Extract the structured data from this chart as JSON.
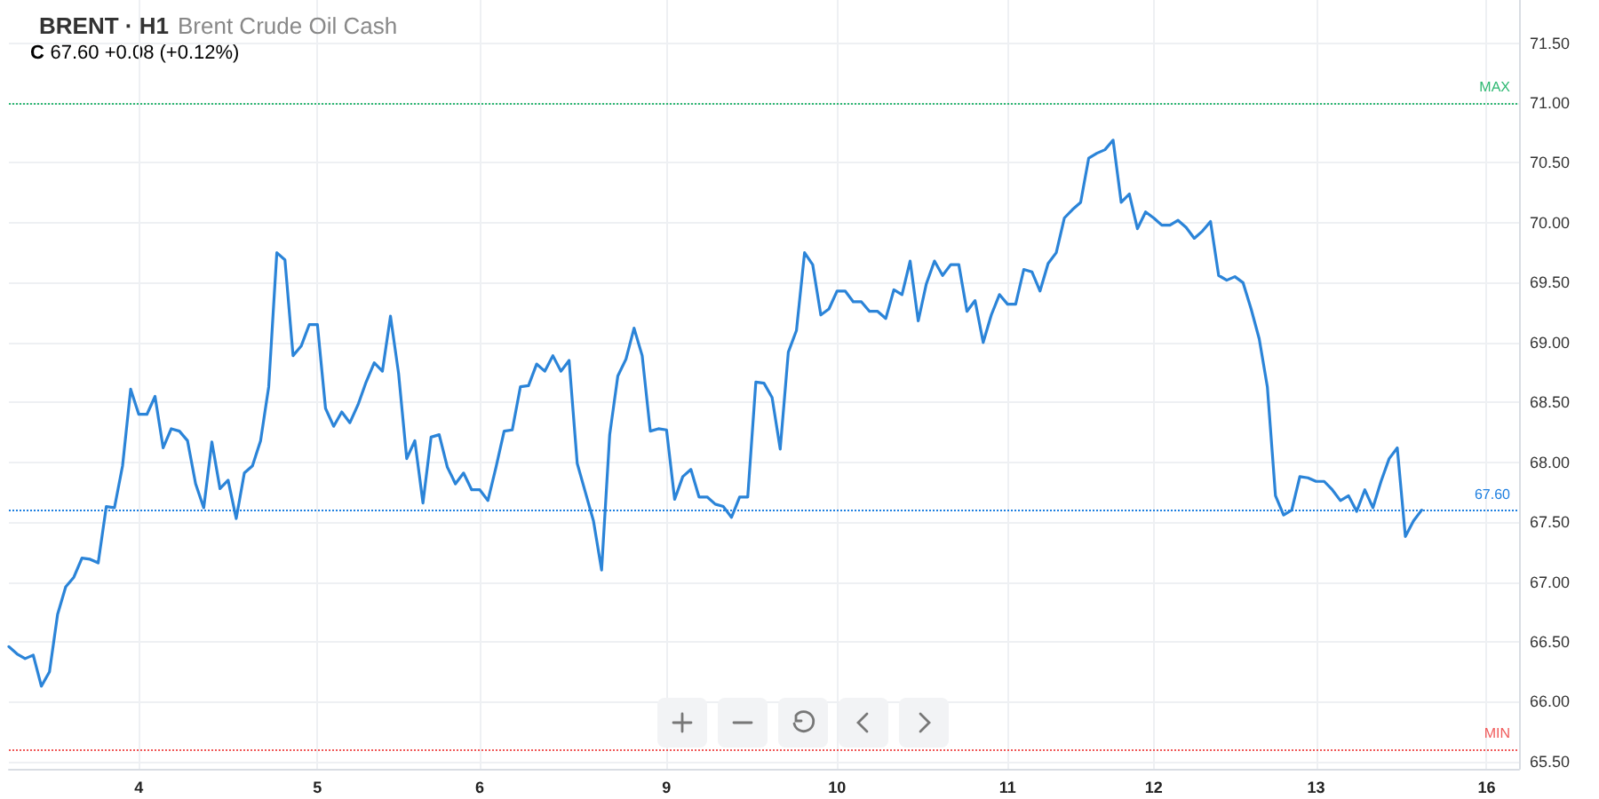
{
  "chart_data": {
    "type": "line",
    "title": "BRENT · H1",
    "subtitle": "Brent Crude Oil Cash",
    "annotations": [
      "C 67.60 +0.08 (+0.12%)"
    ],
    "categories": [
      null,
      null,
      null,
      null,
      null,
      null,
      null,
      null,
      null,
      null,
      null,
      null,
      null,
      null,
      null,
      null,
      "4",
      null,
      null,
      null,
      null,
      null,
      null,
      null,
      null,
      null,
      null,
      null,
      null,
      null,
      null,
      null,
      null,
      null,
      null,
      null,
      null,
      null,
      "5",
      null,
      null,
      null,
      null,
      null,
      null,
      null,
      null,
      null,
      null,
      null,
      null,
      null,
      null,
      null,
      null,
      null,
      null,
      null,
      "6",
      null,
      null,
      null,
      null,
      null,
      null,
      null,
      null,
      null,
      null,
      null,
      null,
      null,
      null,
      null,
      null,
      null,
      null,
      null,
      null,
      null,
      null,
      "9",
      null,
      null,
      null,
      null,
      null,
      null,
      null,
      null,
      null,
      null,
      null,
      null,
      null,
      null,
      null,
      null,
      null,
      null,
      null,
      null,
      "10",
      null,
      null,
      null,
      null,
      null,
      null,
      null,
      null,
      null,
      null,
      null,
      null,
      null,
      null,
      null,
      null,
      null,
      null,
      null,
      null,
      "11",
      null,
      null,
      null,
      null,
      null,
      null,
      null,
      null,
      null,
      null,
      null,
      null,
      null,
      null,
      null,
      null,
      null,
      "12",
      null,
      null,
      null,
      null,
      null,
      null,
      null,
      null,
      null,
      null,
      null,
      null,
      null,
      null,
      null,
      null,
      null,
      null,
      null,
      "13",
      null,
      null,
      null,
      null,
      null,
      null,
      null,
      null,
      null,
      null,
      null,
      null,
      null,
      null,
      null,
      null,
      null,
      null,
      null,
      null,
      "16",
      null,
      null,
      null,
      null
    ],
    "series": [
      {
        "color": "#2b84d8",
        "values": [
          66.46,
          66.4,
          66.36,
          66.39,
          66.13,
          66.25,
          66.73,
          66.96,
          67.04,
          67.2,
          67.19,
          67.16,
          67.63,
          67.62,
          67.97,
          68.61,
          68.4,
          68.4,
          68.55,
          68.12,
          68.28,
          68.26,
          68.18,
          67.82,
          67.62,
          68.17,
          67.78,
          67.85,
          67.53,
          67.91,
          67.97,
          68.18,
          68.63,
          69.75,
          69.69,
          68.89,
          68.97,
          69.15,
          69.15,
          68.45,
          68.3,
          68.42,
          68.33,
          68.48,
          68.67,
          68.83,
          68.76,
          69.22,
          68.74,
          68.03,
          68.18,
          67.66,
          68.21,
          68.23,
          67.96,
          67.82,
          67.91,
          67.77,
          67.77,
          67.68,
          67.96,
          68.26,
          68.27,
          68.63,
          68.64,
          68.82,
          68.76,
          68.89,
          68.76,
          68.85,
          67.99,
          67.75,
          67.51,
          67.1,
          68.23,
          68.72,
          68.86,
          69.12,
          68.89,
          68.26,
          68.28,
          68.27,
          67.69,
          67.88,
          67.94,
          67.71,
          67.71,
          67.65,
          67.63,
          67.54,
          67.71,
          67.71,
          68.67,
          68.66,
          68.54,
          68.11,
          68.92,
          69.1,
          69.75,
          69.65,
          69.23,
          69.28,
          69.43,
          69.43,
          69.34,
          69.34,
          69.26,
          69.26,
          69.2,
          69.44,
          69.4,
          69.68,
          69.18,
          69.49,
          69.68,
          69.56,
          69.65,
          69.65,
          69.26,
          69.35,
          69.0,
          69.23,
          69.4,
          69.32,
          69.32,
          69.61,
          69.59,
          69.43,
          69.66,
          69.75,
          70.04,
          70.11,
          70.17,
          70.54,
          70.58,
          70.61,
          70.69,
          70.17,
          70.24,
          69.95,
          70.09,
          70.04,
          69.98,
          69.98,
          70.02,
          69.96,
          69.87,
          69.93,
          70.01,
          69.56,
          69.52,
          69.55,
          69.5,
          69.28,
          69.03,
          68.63,
          67.72,
          67.56,
          67.6,
          67.88,
          67.87,
          67.84,
          67.84,
          67.77,
          67.68,
          67.72,
          67.59,
          67.77,
          67.62,
          67.84,
          68.03,
          68.12,
          67.38,
          67.51,
          67.6,
          null,
          null,
          null,
          null,
          null,
          null,
          null,
          null,
          null,
          null,
          null,
          null
        ]
      }
    ],
    "ylim": [
      65.44,
      71.86
    ],
    "yticks": [
      {
        "value": 65.5,
        "label": "65.50"
      },
      {
        "value": 66,
        "label": "66.00"
      },
      {
        "value": 66.5,
        "label": "66.50"
      },
      {
        "value": 67,
        "label": "67.00"
      },
      {
        "value": 67.5,
        "label": "67.50"
      },
      {
        "value": 68,
        "label": "68.00"
      },
      {
        "value": 68.5,
        "label": "68.50"
      },
      {
        "value": 69,
        "label": "69.00"
      },
      {
        "value": 69.5,
        "label": "69.50"
      },
      {
        "value": 70,
        "label": "70.00"
      },
      {
        "value": 70.5,
        "label": "70.50"
      },
      {
        "value": 71,
        "label": "71.00"
      },
      {
        "value": 71.5,
        "label": "71.50"
      }
    ],
    "ref_lines": [
      {
        "axis": "y",
        "value": 71,
        "label": "MAX",
        "color": "#2eb872",
        "line_style": "dotted"
      },
      {
        "axis": "y",
        "value": 65.6,
        "label": "MIN",
        "color": "#f05a5a",
        "line_style": "dotted"
      },
      {
        "axis": "y",
        "value": 67.6,
        "label": "67.60",
        "color": "#1e7fe0",
        "line_style": "dotted"
      }
    ],
    "grid": true,
    "marker": "none",
    "line_style": "solid"
  }
}
